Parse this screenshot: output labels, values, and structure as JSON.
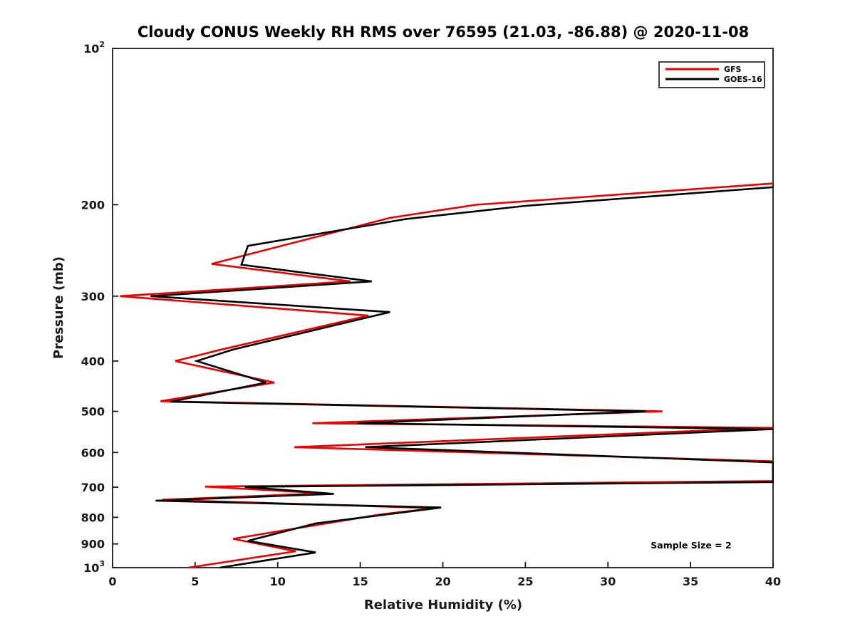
{
  "title": "Cloudy CONUS Weekly RH RMS over 76595 (21.03, -86.88) @ 2020-11-08",
  "chart_data": {
    "type": "line",
    "title": "Cloudy CONUS Weekly RH RMS over 76595 (21.03, -86.88) @ 2020-11-08",
    "xlabel": "Relative Humidity (%)",
    "ylabel": "Pressure (mb)",
    "xlim": [
      0,
      40
    ],
    "ylim": [
      100,
      1000
    ],
    "yscale": "log",
    "y_axis_direction": "increasing downward",
    "grid": "off",
    "note": "Sample Size = 2",
    "x_ticks": [
      0,
      5,
      10,
      15,
      20,
      25,
      30,
      35,
      40
    ],
    "y_ticks": [
      {
        "v": 100,
        "base": "10",
        "exp": "2"
      },
      {
        "v": 200,
        "base": "200"
      },
      {
        "v": 300,
        "base": "300"
      },
      {
        "v": 400,
        "base": "400"
      },
      {
        "v": 500,
        "base": "500"
      },
      {
        "v": 600,
        "base": "600"
      },
      {
        "v": 700,
        "base": "700"
      },
      {
        "v": 800,
        "base": "800"
      },
      {
        "v": 900,
        "base": "900"
      },
      {
        "v": 1000,
        "base": "10",
        "exp": "3"
      }
    ],
    "legend": {
      "position": "top-right",
      "entries": [
        {
          "name": "GFS",
          "color": "#ee0000"
        },
        {
          "name": "GOES-16",
          "color": "#000000"
        }
      ]
    },
    "series": [
      {
        "name": "GFS",
        "color": "#ee0000",
        "points_rh_pressure": [
          [
            40,
            182
          ],
          [
            22,
            200
          ],
          [
            16.8,
            212
          ],
          [
            6.0,
            260
          ],
          [
            14.4,
            281
          ],
          [
            0.45,
            300
          ],
          [
            15.5,
            327
          ],
          [
            6.6,
            380
          ],
          [
            3.8,
            400
          ],
          [
            9.8,
            440
          ],
          [
            2.9,
            478
          ],
          [
            33.3,
            500
          ],
          [
            12.1,
            527
          ],
          [
            40,
            538
          ],
          [
            11.0,
            586
          ],
          [
            40,
            624
          ],
          [
            40,
            681
          ],
          [
            5.6,
            698
          ],
          [
            12.8,
            719
          ],
          [
            3.0,
            740
          ],
          [
            19.5,
            768
          ],
          [
            16.2,
            790
          ],
          [
            7.3,
            880
          ],
          [
            11.1,
            930
          ],
          [
            4.6,
            1000
          ]
        ]
      },
      {
        "name": "GOES-16",
        "color": "#000000",
        "points_rh_pressure": [
          [
            40,
            185
          ],
          [
            25,
            201
          ],
          [
            17.8,
            213
          ],
          [
            8.2,
            240
          ],
          [
            7.8,
            261
          ],
          [
            15.7,
            281
          ],
          [
            2.3,
            300
          ],
          [
            16.8,
            322
          ],
          [
            7.3,
            380
          ],
          [
            5.1,
            400
          ],
          [
            9.3,
            440
          ],
          [
            3.5,
            479
          ],
          [
            32.3,
            500
          ],
          [
            14.8,
            527
          ],
          [
            40,
            541
          ],
          [
            15.3,
            586
          ],
          [
            40,
            627
          ],
          [
            40,
            684
          ],
          [
            8.0,
            699
          ],
          [
            13.4,
            721
          ],
          [
            2.6,
            743
          ],
          [
            19.9,
            766
          ],
          [
            12.3,
            822
          ],
          [
            8.2,
            888
          ],
          [
            12.3,
            935
          ],
          [
            6.5,
            1000
          ]
        ]
      }
    ],
    "axis_color": "#1a1a1a"
  }
}
